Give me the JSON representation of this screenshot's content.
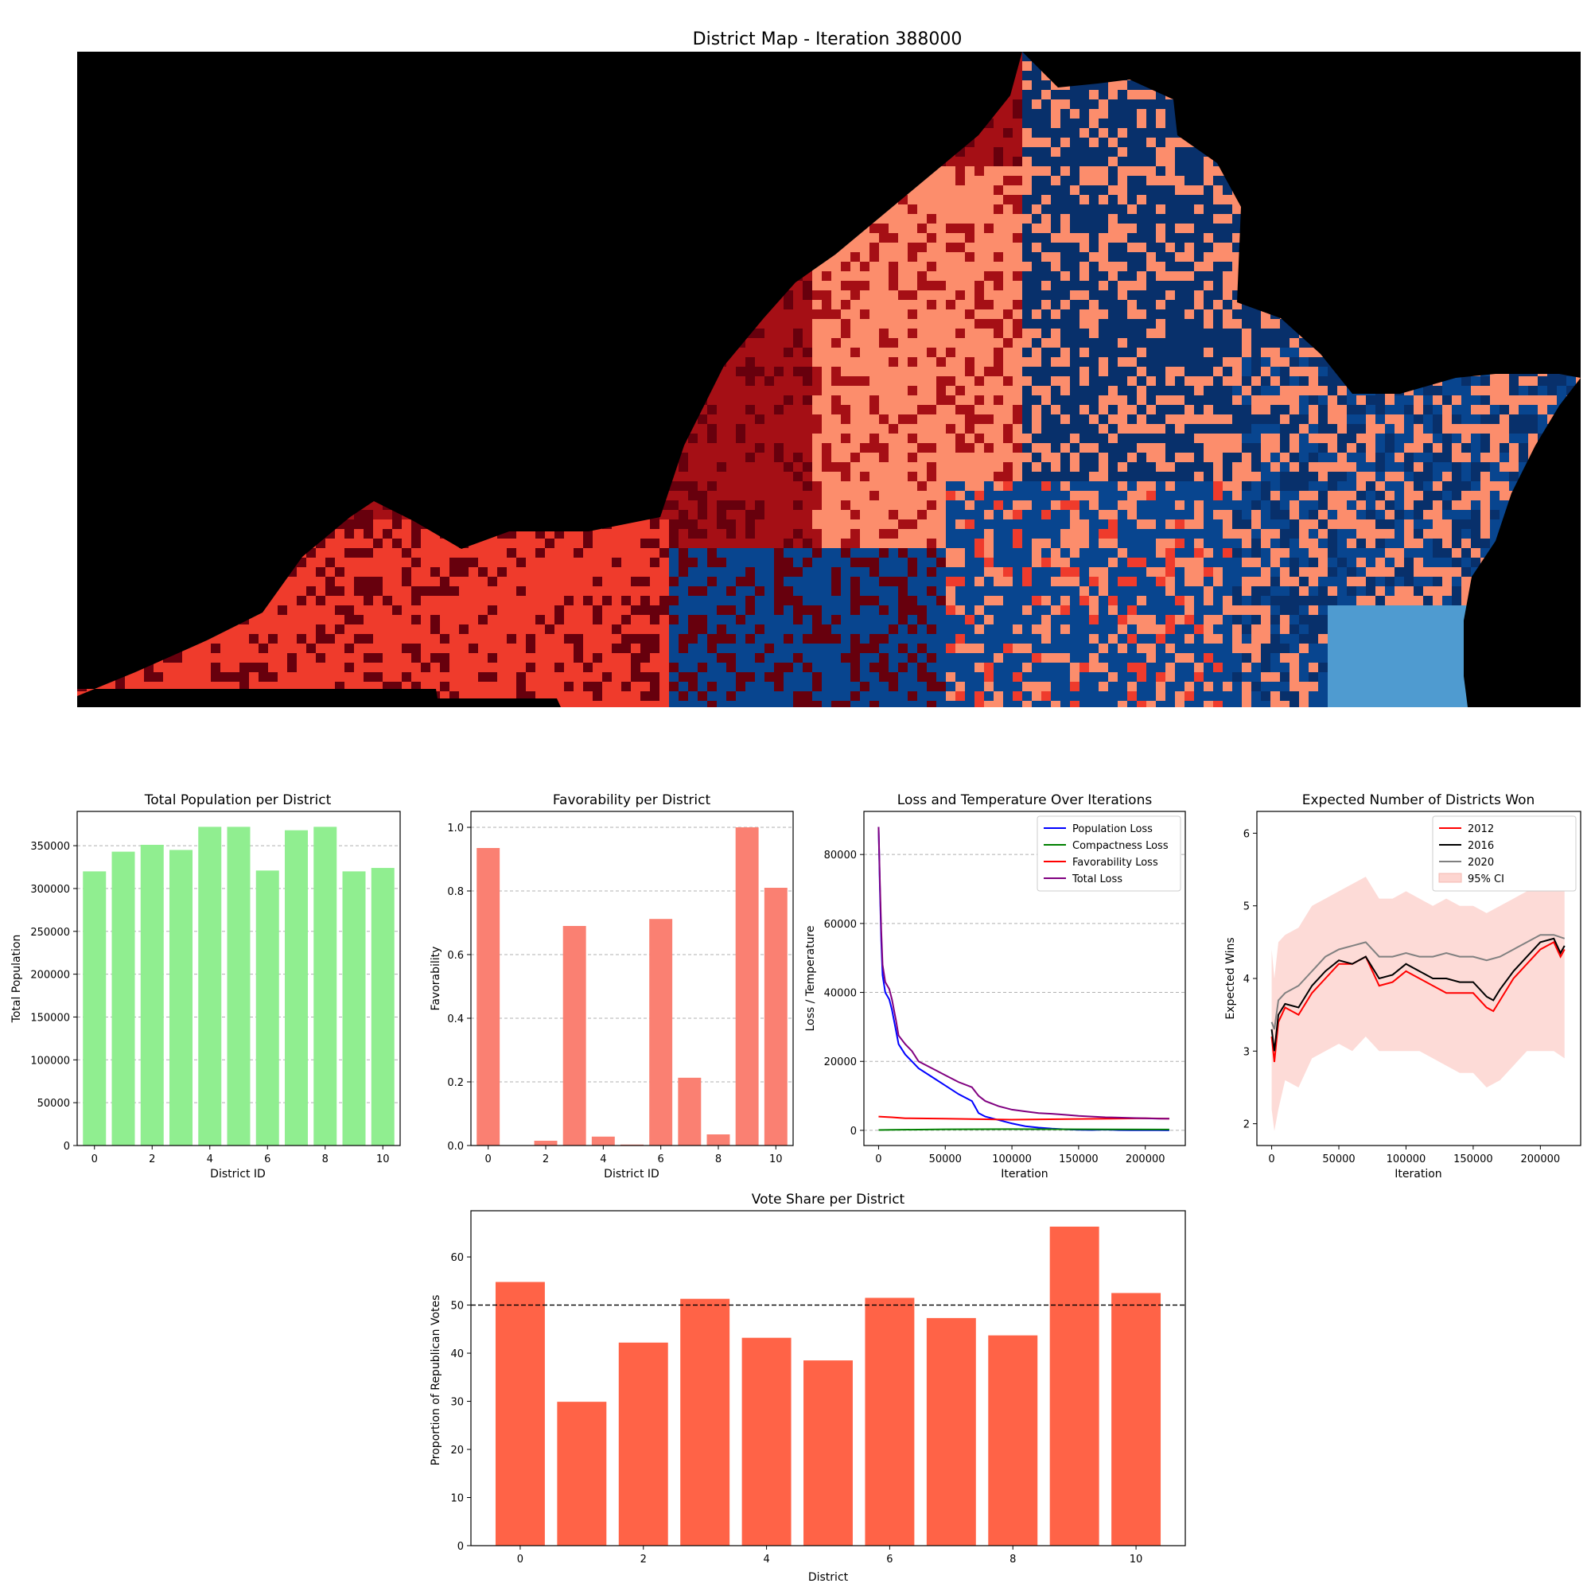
{
  "figure": {
    "map_title": "District Map - Iteration 388000",
    "map_colors": {
      "background": "#000000",
      "dark_red": "#67000d",
      "red": "#a50f15",
      "salmon": "#fc8d6c",
      "light_red": "#ef3b2c",
      "navy": "#08306b",
      "blue": "#08458f",
      "light_blue": "#4f9bd0"
    }
  },
  "chart_data": [
    {
      "id": "population",
      "type": "bar",
      "title": "Total Population per District",
      "xlabel": "District ID",
      "ylabel": "Total Population",
      "categories": [
        0,
        1,
        2,
        3,
        4,
        5,
        6,
        7,
        8,
        9,
        10
      ],
      "values": [
        320000,
        343000,
        351000,
        345000,
        372000,
        372000,
        321000,
        368000,
        372000,
        320000,
        324000
      ],
      "ylim": [
        0,
        390000
      ],
      "xlim": [
        -0.6,
        10.6
      ],
      "xticks": [
        0,
        2,
        4,
        6,
        8,
        10
      ],
      "yticks": [
        0,
        50000,
        100000,
        150000,
        200000,
        250000,
        300000,
        350000
      ],
      "grid": "y-dashed",
      "color": "#90ee90"
    },
    {
      "id": "favorability",
      "type": "bar",
      "title": "Favorability per District",
      "xlabel": "District ID",
      "ylabel": "Favorability",
      "categories": [
        0,
        1,
        2,
        3,
        4,
        5,
        6,
        7,
        8,
        9,
        10
      ],
      "values": [
        0.935,
        0.0,
        0.015,
        0.69,
        0.028,
        0.003,
        0.712,
        0.213,
        0.035,
        1.0,
        0.81
      ],
      "ylim": [
        0,
        1.05
      ],
      "xlim": [
        -0.6,
        10.6
      ],
      "xticks": [
        0,
        2,
        4,
        6,
        8,
        10
      ],
      "yticks": [
        0.0,
        0.2,
        0.4,
        0.6,
        0.8,
        1.0
      ],
      "grid": "y-dashed",
      "color": "#fa8072"
    },
    {
      "id": "loss",
      "type": "line",
      "title": "Loss and Temperature Over Iterations",
      "xlabel": "Iteration",
      "ylabel": "Loss / Temperature",
      "xlim": [
        -11000,
        230000
      ],
      "ylim": [
        -4400,
        92500
      ],
      "xticks": [
        0,
        50000,
        100000,
        150000,
        200000
      ],
      "yticks": [
        0,
        20000,
        40000,
        60000,
        80000
      ],
      "grid": "y-dashed",
      "legend": "top-right",
      "series": [
        {
          "name": "Population Loss",
          "color": "#0000ff",
          "x": [
            0,
            1000,
            2000,
            3000,
            5000,
            8000,
            10000,
            13000,
            15000,
            20000,
            25000,
            30000,
            40000,
            50000,
            60000,
            70000,
            75000,
            80000,
            90000,
            100000,
            110000,
            120000,
            130000,
            140000,
            150000,
            160000,
            170000,
            180000,
            190000,
            200000,
            210000,
            218000
          ],
          "y": [
            88000,
            70000,
            55000,
            45000,
            40000,
            38000,
            35000,
            29000,
            25000,
            22000,
            20000,
            18000,
            15500,
            13000,
            10500,
            8500,
            5000,
            4000,
            3000,
            2000,
            1200,
            800,
            500,
            300,
            150,
            100,
            200,
            80,
            50,
            40,
            30,
            20
          ]
        },
        {
          "name": "Compactness Loss",
          "color": "#008000",
          "x": [
            0,
            10000,
            50000,
            100000,
            150000,
            218000
          ],
          "y": [
            100,
            150,
            300,
            350,
            300,
            250
          ]
        },
        {
          "name": "Favorability Loss",
          "color": "#ff0000",
          "x": [
            0,
            10000,
            20000,
            50000,
            80000,
            100000,
            150000,
            200000,
            218000
          ],
          "y": [
            4000,
            3800,
            3500,
            3400,
            3200,
            3100,
            3300,
            3500,
            3400
          ]
        },
        {
          "name": "Total Loss",
          "color": "#800080",
          "x": [
            0,
            1000,
            2000,
            3000,
            5000,
            8000,
            10000,
            13000,
            15000,
            20000,
            25000,
            30000,
            40000,
            50000,
            60000,
            70000,
            75000,
            80000,
            90000,
            100000,
            110000,
            120000,
            130000,
            140000,
            150000,
            160000,
            170000,
            180000,
            190000,
            200000,
            210000,
            218000
          ],
          "y": [
            88000,
            72000,
            58000,
            48000,
            43000,
            41000,
            38000,
            32000,
            27500,
            25000,
            23000,
            20000,
            18000,
            16000,
            14000,
            12500,
            10000,
            8500,
            7000,
            6000,
            5500,
            5000,
            4800,
            4500,
            4200,
            4000,
            3800,
            3700,
            3600,
            3500,
            3400,
            3400
          ]
        }
      ]
    },
    {
      "id": "wins",
      "type": "line",
      "title": "Expected Number of Districts Won",
      "xlabel": "Iteration",
      "ylabel": "Expected Wins",
      "xlim": [
        -11000,
        230000
      ],
      "ylim": [
        1.7,
        6.3
      ],
      "xticks": [
        0,
        50000,
        100000,
        150000,
        200000
      ],
      "yticks": [
        2,
        3,
        4,
        5,
        6
      ],
      "legend": "top-right",
      "series": [
        {
          "name": "2012",
          "color": "#ff0000",
          "x": [
            0,
            2000,
            5000,
            10000,
            20000,
            30000,
            40000,
            50000,
            60000,
            70000,
            80000,
            90000,
            100000,
            110000,
            120000,
            130000,
            140000,
            150000,
            160000,
            165000,
            170000,
            180000,
            190000,
            200000,
            210000,
            215000,
            218000
          ],
          "y": [
            3.2,
            2.85,
            3.4,
            3.6,
            3.5,
            3.8,
            4.0,
            4.2,
            4.2,
            4.3,
            3.9,
            3.95,
            4.1,
            4.0,
            3.9,
            3.8,
            3.8,
            3.8,
            3.6,
            3.55,
            3.7,
            4.0,
            4.2,
            4.4,
            4.5,
            4.3,
            4.4
          ]
        },
        {
          "name": "2016",
          "color": "#000000",
          "x": [
            0,
            2000,
            5000,
            10000,
            20000,
            30000,
            40000,
            50000,
            60000,
            70000,
            80000,
            90000,
            100000,
            110000,
            120000,
            130000,
            140000,
            150000,
            160000,
            165000,
            170000,
            180000,
            190000,
            200000,
            210000,
            215000,
            218000
          ],
          "y": [
            3.3,
            3.0,
            3.5,
            3.65,
            3.6,
            3.9,
            4.1,
            4.25,
            4.2,
            4.3,
            4.0,
            4.05,
            4.2,
            4.1,
            4.0,
            4.0,
            3.95,
            3.95,
            3.75,
            3.7,
            3.85,
            4.1,
            4.3,
            4.5,
            4.55,
            4.35,
            4.45
          ]
        },
        {
          "name": "2020",
          "color": "#808080",
          "x": [
            0,
            2000,
            5000,
            10000,
            20000,
            30000,
            40000,
            50000,
            60000,
            70000,
            80000,
            90000,
            100000,
            110000,
            120000,
            130000,
            140000,
            150000,
            160000,
            170000,
            180000,
            190000,
            200000,
            210000,
            218000
          ],
          "y": [
            3.4,
            3.3,
            3.7,
            3.8,
            3.9,
            4.1,
            4.3,
            4.4,
            4.45,
            4.5,
            4.3,
            4.3,
            4.35,
            4.3,
            4.3,
            4.35,
            4.3,
            4.3,
            4.25,
            4.3,
            4.4,
            4.5,
            4.6,
            4.6,
            4.55
          ]
        }
      ],
      "band": {
        "name": "95% CI",
        "color": "#fdd5d0",
        "x": [
          0,
          2000,
          5000,
          10000,
          20000,
          30000,
          40000,
          50000,
          60000,
          70000,
          80000,
          90000,
          100000,
          110000,
          120000,
          130000,
          140000,
          150000,
          160000,
          170000,
          180000,
          190000,
          200000,
          210000,
          218000
        ],
        "lower": [
          2.2,
          1.9,
          2.2,
          2.6,
          2.5,
          2.9,
          3.0,
          3.1,
          3.0,
          3.2,
          3.0,
          3.0,
          3.0,
          3.0,
          2.9,
          2.8,
          2.7,
          2.7,
          2.5,
          2.6,
          2.8,
          3.0,
          3.0,
          3.0,
          2.9
        ],
        "upper": [
          4.4,
          4.0,
          4.5,
          4.6,
          4.7,
          5.0,
          5.1,
          5.2,
          5.3,
          5.4,
          5.1,
          5.1,
          5.2,
          5.1,
          5.0,
          5.1,
          5.0,
          5.0,
          4.9,
          5.0,
          5.1,
          5.2,
          5.3,
          5.3,
          5.2
        ]
      }
    },
    {
      "id": "voteshare",
      "type": "bar",
      "title": "Vote Share per District",
      "xlabel": "District",
      "ylabel": "Proportion of Republican Votes",
      "categories": [
        0,
        1,
        2,
        3,
        4,
        5,
        6,
        7,
        8,
        9,
        10
      ],
      "values": [
        54.8,
        29.9,
        42.2,
        51.3,
        43.2,
        38.5,
        51.5,
        47.3,
        43.7,
        66.3,
        52.5
      ],
      "ylim": [
        0,
        69.6
      ],
      "xlim": [
        -0.8,
        10.8
      ],
      "xticks": [
        0,
        2,
        4,
        6,
        8,
        10
      ],
      "yticks": [
        0,
        10,
        20,
        30,
        40,
        50,
        60
      ],
      "reference_line": 50,
      "color": "#ff6347"
    }
  ]
}
